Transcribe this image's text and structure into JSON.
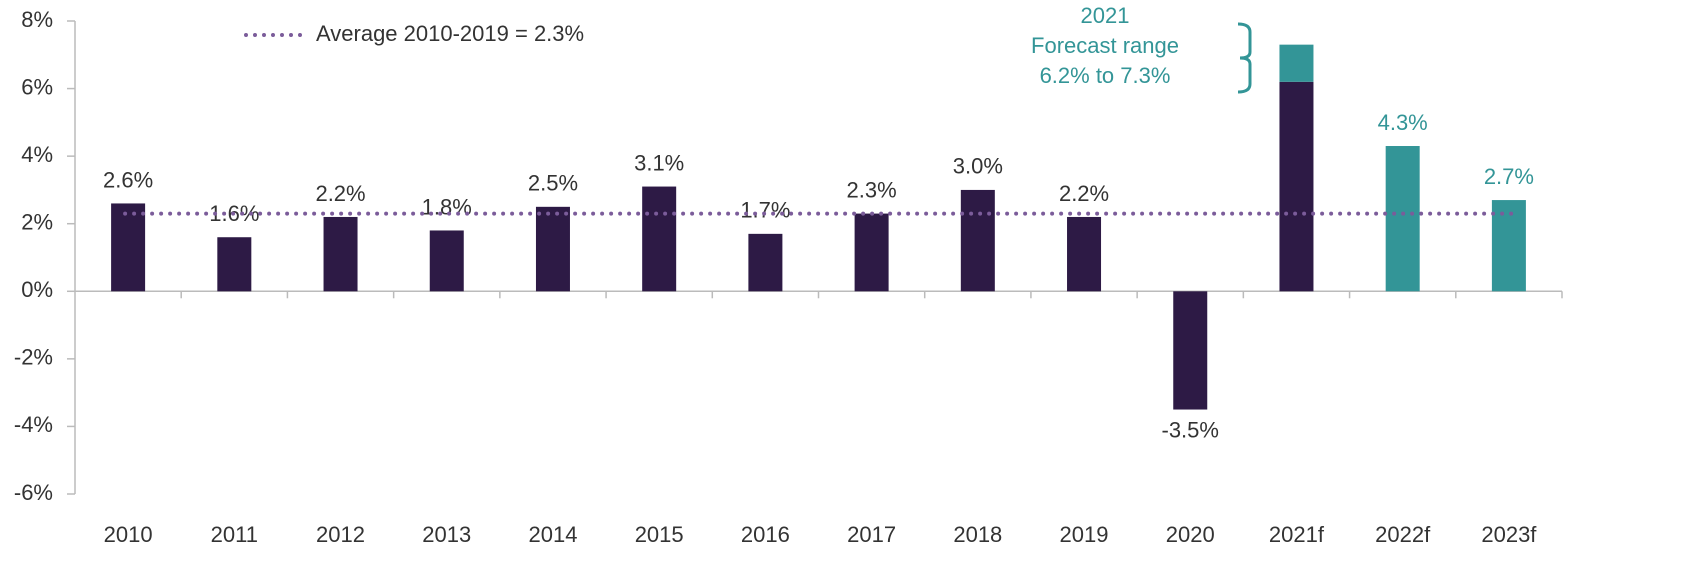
{
  "chart_data": {
    "type": "bar",
    "categories": [
      "2010",
      "2011",
      "2012",
      "2013",
      "2014",
      "2015",
      "2016",
      "2017",
      "2018",
      "2019",
      "2020",
      "2021f",
      "2022f",
      "2023f"
    ],
    "values": [
      2.6,
      1.6,
      2.2,
      1.8,
      2.5,
      3.1,
      1.7,
      2.3,
      3.0,
      2.2,
      -3.5,
      6.2,
      4.3,
      2.7
    ],
    "value_labels": [
      "2.6%",
      "1.6%",
      "2.2%",
      "1.8%",
      "2.5%",
      "3.1%",
      "1.7%",
      "2.3%",
      "3.0%",
      "2.2%",
      "-3.5%",
      null,
      "4.3%",
      "2.7%"
    ],
    "colors": [
      "#2d1a45",
      "#2d1a45",
      "#2d1a45",
      "#2d1a45",
      "#2d1a45",
      "#2d1a45",
      "#2d1a45",
      "#2d1a45",
      "#2d1a45",
      "#2d1a45",
      "#2d1a45",
      "#2d1a45",
      "#339597",
      "#339597"
    ],
    "forecast_range": {
      "category": "2021f",
      "low": 6.2,
      "high": 7.3,
      "color": "#339597"
    },
    "annotation": [
      "2021",
      "Forecast range",
      "6.2% to 7.3%"
    ],
    "average": {
      "value": 2.3,
      "label": "Average 2010-2019 = 2.3%",
      "color": "#7b5c9a"
    },
    "ylim": [
      -6,
      8
    ],
    "yticks": [
      {
        "value": 8,
        "label": "8%"
      },
      {
        "value": 6,
        "label": "6%"
      },
      {
        "value": 4,
        "label": "4%"
      },
      {
        "value": 2,
        "label": "2%"
      },
      {
        "value": 0,
        "label": "0%"
      },
      {
        "value": -2,
        "label": "-2%"
      },
      {
        "value": -4,
        "label": "-4%"
      },
      {
        "value": -6,
        "label": "-6%"
      }
    ]
  }
}
